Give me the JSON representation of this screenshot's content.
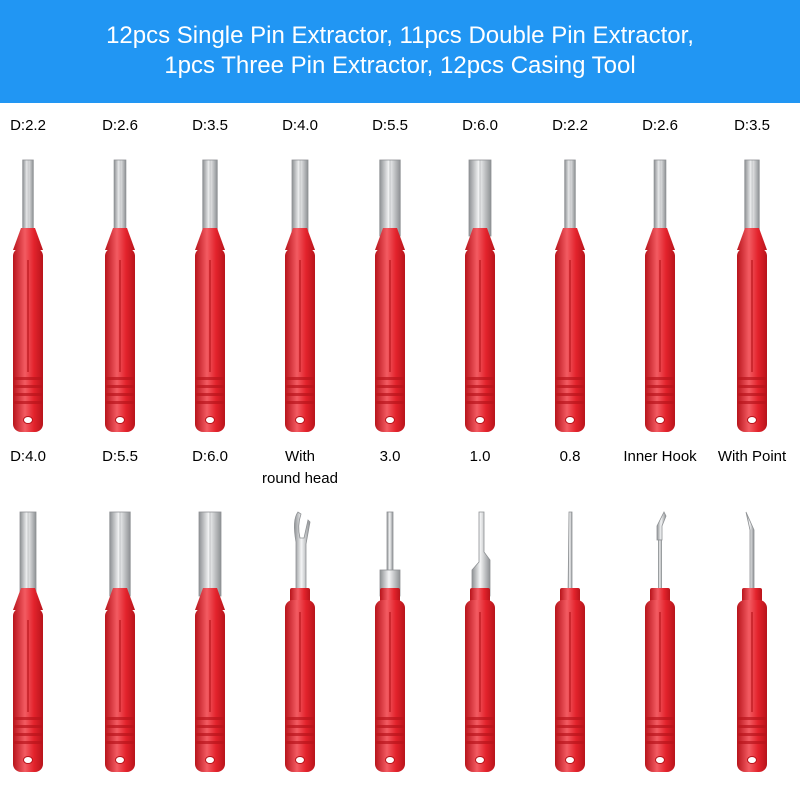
{
  "banner": {
    "line1": "12pcs Single Pin Extractor, 11pcs Double Pin Extractor,",
    "line2": "1pcs Three Pin Extractor, 12pcs Casing Tool",
    "background_color": "#2196f3",
    "text_color": "#ffffff"
  },
  "colors": {
    "handle": "#e3232c",
    "handle_shadow": "#b8141b",
    "handle_highlight": "#f35b62",
    "steel": "#d2d4d6",
    "steel_dark": "#8e9194"
  },
  "rows": [
    {
      "tools": [
        {
          "label": "D:2.2",
          "tip": "rod",
          "diameter": 2.2
        },
        {
          "label": "D:2.6",
          "tip": "rod",
          "diameter": 2.6
        },
        {
          "label": "D:3.5",
          "tip": "rod",
          "diameter": 3.5
        },
        {
          "label": "D:4.0",
          "tip": "rod",
          "diameter": 4.0
        },
        {
          "label": "D:5.5",
          "tip": "rod",
          "diameter": 5.5
        },
        {
          "label": "D:6.0",
          "tip": "rod",
          "diameter": 6.0
        },
        {
          "label": "D:2.2",
          "tip": "rod",
          "diameter": 2.2
        },
        {
          "label": "D:2.6",
          "tip": "rod",
          "diameter": 2.6
        },
        {
          "label": "D:3.5",
          "tip": "rod",
          "diameter": 3.5
        }
      ]
    },
    {
      "tools": [
        {
          "label": "D:4.0",
          "tip": "rod",
          "diameter": 4.0
        },
        {
          "label": "D:5.5",
          "tip": "rod",
          "diameter": 5.5
        },
        {
          "label": "D:6.0",
          "tip": "rod",
          "diameter": 6.0
        },
        {
          "label": "With",
          "label2": "round head",
          "tip": "fork"
        },
        {
          "label": "3.0",
          "tip": "flat3"
        },
        {
          "label": "1.0",
          "tip": "flat1"
        },
        {
          "label": "0.8",
          "tip": "needle"
        },
        {
          "label": "Inner Hook",
          "tip": "hook"
        },
        {
          "label": "With Point",
          "tip": "point"
        }
      ]
    }
  ]
}
